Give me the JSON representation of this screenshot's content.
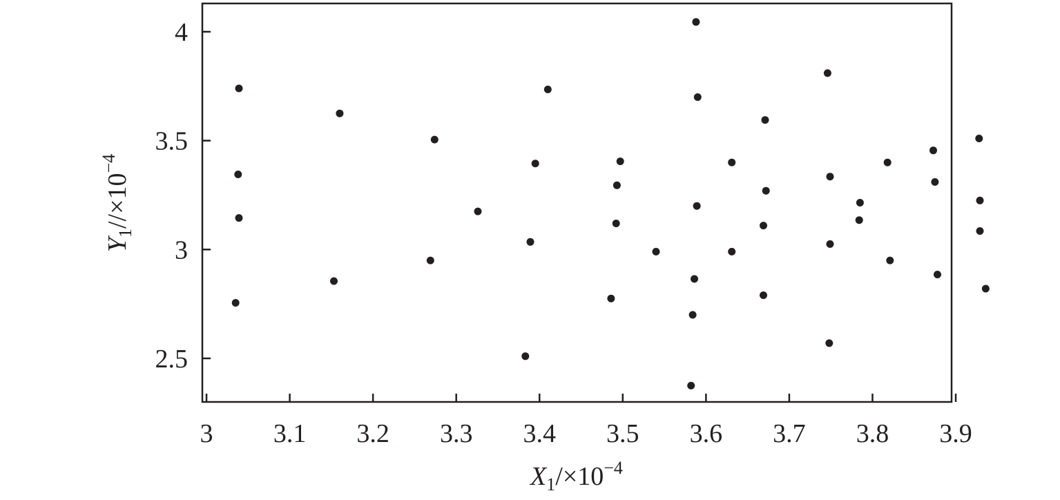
{
  "chart_data": {
    "type": "scatter",
    "xlabel": {
      "var": "X",
      "sub": "1",
      "unit": "/×10",
      "exp": "−4"
    },
    "ylabel": {
      "var": "Y",
      "sub": "1",
      "unit": "//×10",
      "exp": "−4"
    },
    "xlim": [
      2.995,
      3.895
    ],
    "ylim": [
      2.3,
      4.13
    ],
    "x_ticks": [
      3.0,
      3.1,
      3.2,
      3.3,
      3.4,
      3.5,
      3.6,
      3.7,
      3.8,
      3.9
    ],
    "x_tick_labels": [
      "3",
      "3.1",
      "3.2",
      "3.3",
      "3.4",
      "3.5",
      "3.6",
      "3.7",
      "3.8",
      "3.9"
    ],
    "y_ticks": [
      2.5,
      3.0,
      3.5,
      4.0
    ],
    "y_tick_labels": [
      "2.5",
      "3",
      "3.5",
      "4"
    ],
    "grid": false,
    "series": [
      {
        "color": "#231f20",
        "points": [
          [
            3.039,
            3.74
          ],
          [
            3.038,
            3.345
          ],
          [
            3.039,
            3.145
          ],
          [
            3.035,
            2.755
          ],
          [
            3.16,
            3.625
          ],
          [
            3.153,
            2.855
          ],
          [
            3.274,
            3.505
          ],
          [
            3.269,
            2.95
          ],
          [
            3.326,
            3.175
          ],
          [
            3.395,
            3.395
          ],
          [
            3.389,
            3.035
          ],
          [
            3.383,
            2.51
          ],
          [
            3.41,
            3.735
          ],
          [
            3.497,
            3.405
          ],
          [
            3.493,
            3.295
          ],
          [
            3.492,
            3.12
          ],
          [
            3.486,
            2.775
          ],
          [
            3.54,
            2.99
          ],
          [
            3.588,
            4.045
          ],
          [
            3.59,
            3.7
          ],
          [
            3.589,
            3.2
          ],
          [
            3.586,
            2.865
          ],
          [
            3.584,
            2.7
          ],
          [
            3.582,
            2.375
          ],
          [
            3.631,
            3.4
          ],
          [
            3.631,
            2.99
          ],
          [
            3.671,
            3.595
          ],
          [
            3.672,
            3.27
          ],
          [
            3.669,
            3.11
          ],
          [
            3.669,
            2.79
          ],
          [
            3.746,
            3.81
          ],
          [
            3.749,
            3.335
          ],
          [
            3.749,
            3.025
          ],
          [
            3.748,
            2.57
          ],
          [
            3.785,
            3.215
          ],
          [
            3.784,
            3.135
          ],
          [
            3.818,
            3.4
          ],
          [
            3.821,
            2.95
          ],
          [
            3.873,
            3.455
          ],
          [
            3.875,
            3.31
          ],
          [
            3.878,
            2.885
          ],
          [
            3.928,
            3.51
          ],
          [
            3.929,
            3.225
          ],
          [
            3.929,
            3.085
          ],
          [
            3.936,
            2.82
          ]
        ]
      }
    ]
  }
}
